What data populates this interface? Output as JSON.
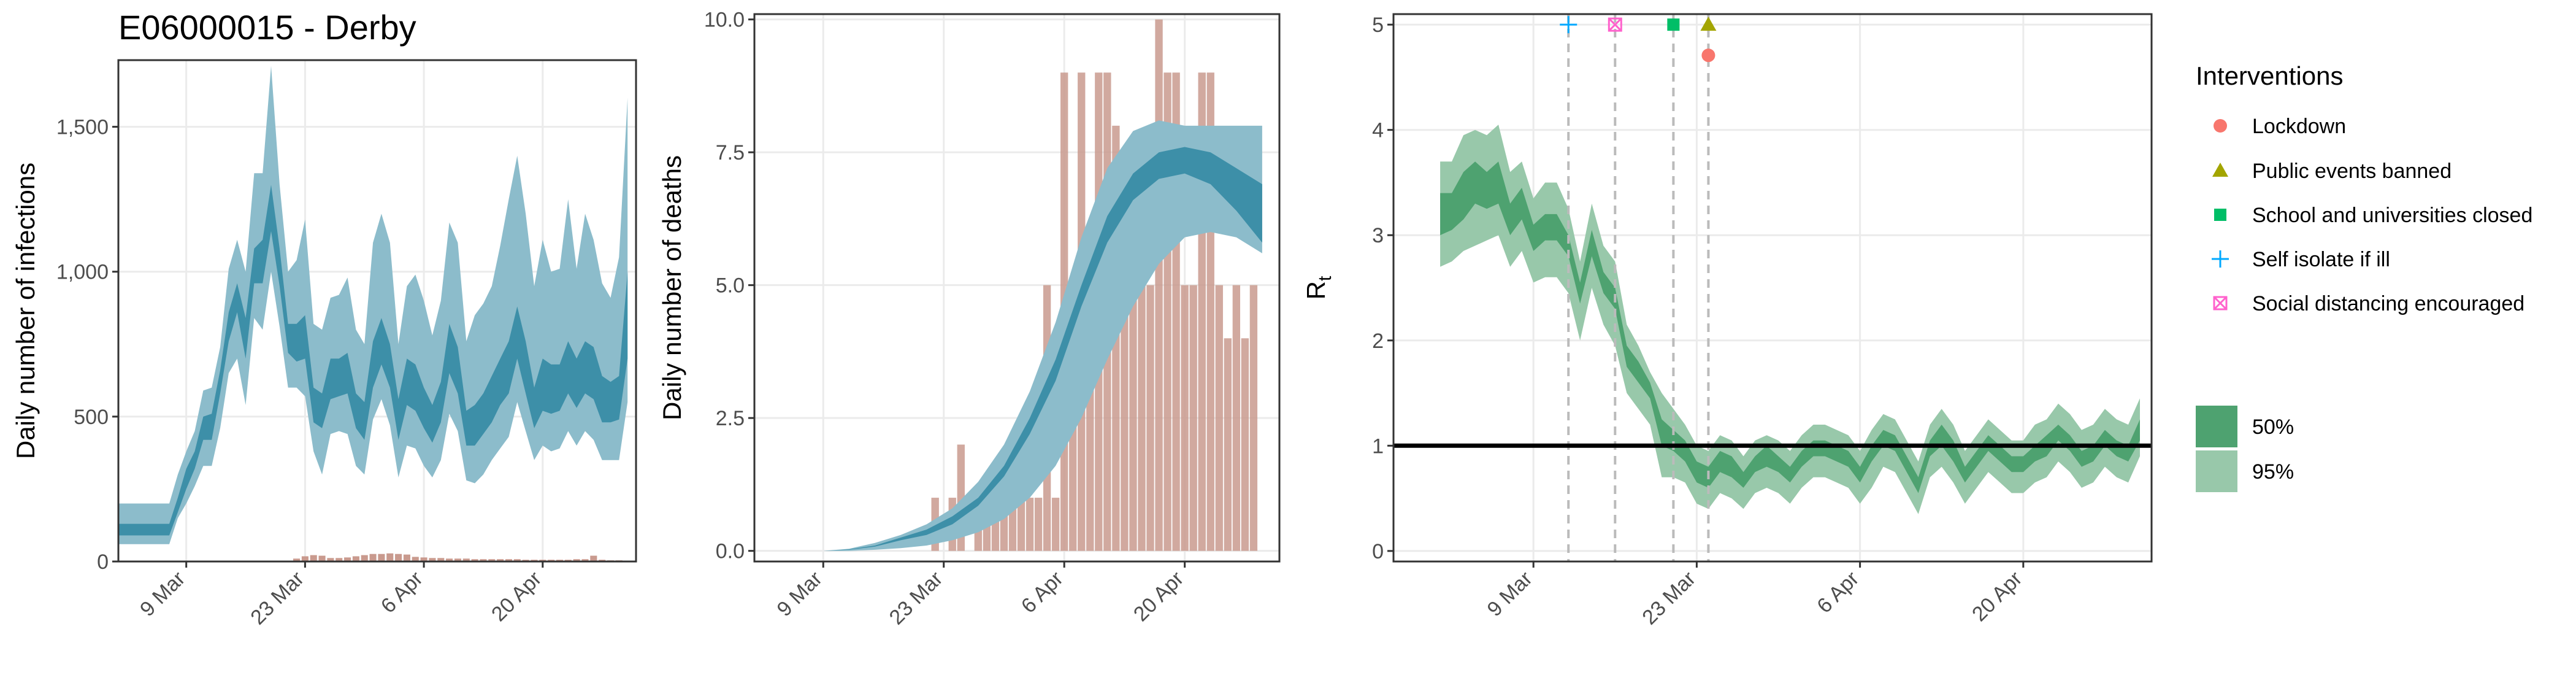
{
  "chart_data": [
    {
      "type": "area",
      "title": "E06000015 - Derby",
      "xlabel": "",
      "ylabel": "Daily number of infections",
      "x_range": [
        "2020-03-01",
        "2020-05-01"
      ],
      "ylim": [
        0,
        1730
      ],
      "grid": true,
      "y_ticks": [
        0,
        500,
        1000,
        1500
      ],
      "y_tick_labels": [
        "0",
        "500",
        "1,000",
        "1,500"
      ],
      "x_ticks": [
        "2020-03-09",
        "2020-03-23",
        "2020-04-06",
        "2020-04-20"
      ],
      "x_tick_labels": [
        "9 Mar",
        "23 Mar",
        "6 Apr",
        "20 Apr"
      ],
      "x": [
        "2020-03-01",
        "2020-03-02",
        "2020-03-03",
        "2020-03-04",
        "2020-03-05",
        "2020-03-06",
        "2020-03-07",
        "2020-03-08",
        "2020-03-09",
        "2020-03-10",
        "2020-03-11",
        "2020-03-12",
        "2020-03-13",
        "2020-03-14",
        "2020-03-15",
        "2020-03-16",
        "2020-03-17",
        "2020-03-18",
        "2020-03-19",
        "2020-03-20",
        "2020-03-21",
        "2020-03-22",
        "2020-03-23",
        "2020-03-24",
        "2020-03-25",
        "2020-03-26",
        "2020-03-27",
        "2020-03-28",
        "2020-03-29",
        "2020-03-30",
        "2020-03-31",
        "2020-04-01",
        "2020-04-02",
        "2020-04-03",
        "2020-04-04",
        "2020-04-05",
        "2020-04-06",
        "2020-04-07",
        "2020-04-08",
        "2020-04-09",
        "2020-04-10",
        "2020-04-11",
        "2020-04-12",
        "2020-04-13",
        "2020-04-14",
        "2020-04-15",
        "2020-04-16",
        "2020-04-17",
        "2020-04-18",
        "2020-04-19",
        "2020-04-20",
        "2020-04-21",
        "2020-04-22",
        "2020-04-23",
        "2020-04-24",
        "2020-04-25",
        "2020-04-26",
        "2020-04-27",
        "2020-04-28",
        "2020-04-29",
        "2020-04-30"
      ],
      "series": [
        {
          "name": "95%",
          "lower": [
            60,
            60,
            60,
            60,
            60,
            60,
            60,
            150,
            200,
            260,
            330,
            330,
            460,
            650,
            700,
            540,
            840,
            800,
            1000,
            810,
            600,
            600,
            570,
            380,
            300,
            440,
            450,
            440,
            330,
            300,
            490,
            560,
            470,
            290,
            400,
            390,
            330,
            290,
            350,
            510,
            450,
            280,
            270,
            300,
            350,
            390,
            430,
            550,
            450,
            350,
            400,
            380,
            390,
            450,
            400,
            450,
            420,
            350,
            350,
            350,
            550
          ],
          "upper": [
            200,
            200,
            200,
            200,
            200,
            200,
            200,
            300,
            380,
            450,
            590,
            600,
            740,
            1010,
            1110,
            1000,
            1340,
            1340,
            1710,
            1300,
            1000,
            1040,
            1180,
            820,
            800,
            910,
            920,
            980,
            800,
            750,
            1100,
            1200,
            1100,
            750,
            950,
            990,
            900,
            780,
            900,
            1170,
            1100,
            760,
            850,
            890,
            950,
            1090,
            1250,
            1400,
            1200,
            950,
            1110,
            1000,
            1010,
            1250,
            1010,
            1200,
            1110,
            960,
            910,
            1050,
            1600
          ]
        },
        {
          "name": "50%",
          "lower": [
            90,
            90,
            90,
            90,
            90,
            90,
            90,
            170,
            250,
            320,
            420,
            420,
            580,
            760,
            860,
            700,
            960,
            960,
            1140,
            950,
            720,
            690,
            700,
            480,
            460,
            560,
            570,
            580,
            460,
            420,
            600,
            680,
            600,
            420,
            540,
            520,
            460,
            410,
            480,
            650,
            580,
            400,
            400,
            440,
            480,
            540,
            580,
            700,
            580,
            460,
            520,
            510,
            520,
            580,
            530,
            580,
            560,
            480,
            480,
            490,
            700
          ],
          "upper": [
            130,
            130,
            130,
            130,
            130,
            130,
            130,
            220,
            320,
            380,
            500,
            510,
            660,
            860,
            960,
            840,
            1080,
            1110,
            1300,
            1080,
            820,
            820,
            850,
            600,
            580,
            700,
            700,
            720,
            580,
            550,
            760,
            840,
            750,
            560,
            700,
            680,
            600,
            540,
            620,
            820,
            740,
            520,
            540,
            580,
            640,
            700,
            760,
            880,
            760,
            600,
            700,
            680,
            680,
            760,
            700,
            760,
            740,
            640,
            620,
            640,
            1000
          ]
        }
      ],
      "observed_bars": {
        "name": "observed infections",
        "values": [
          0,
          0,
          0,
          0,
          0,
          0,
          0,
          0,
          0,
          0,
          0,
          0,
          0,
          0,
          0,
          0,
          0,
          0,
          0,
          0,
          0,
          10,
          18,
          22,
          20,
          12,
          12,
          14,
          18,
          22,
          26,
          26,
          28,
          26,
          24,
          16,
          14,
          12,
          12,
          10,
          10,
          10,
          8,
          8,
          8,
          8,
          8,
          8,
          6,
          6,
          6,
          6,
          6,
          6,
          8,
          8,
          20,
          6,
          4,
          4,
          0
        ]
      }
    },
    {
      "type": "area",
      "title": "",
      "xlabel": "",
      "ylabel": "Daily number of deaths",
      "x_range": [
        "2020-03-01",
        "2020-05-01"
      ],
      "ylim": [
        -0.2,
        10.1
      ],
      "grid": true,
      "y_ticks": [
        0,
        2.5,
        5,
        7.5,
        10
      ],
      "y_tick_labels": [
        "0.0",
        "2.5",
        "5.0",
        "7.5",
        "10.0"
      ],
      "x_ticks": [
        "2020-03-09",
        "2020-03-23",
        "2020-04-06",
        "2020-04-20"
      ],
      "x_tick_labels": [
        "9 Mar",
        "23 Mar",
        "6 Apr",
        "20 Apr"
      ],
      "x": [
        "2020-03-09",
        "2020-03-12",
        "2020-03-15",
        "2020-03-18",
        "2020-03-21",
        "2020-03-24",
        "2020-03-27",
        "2020-03-30",
        "2020-04-02",
        "2020-04-05",
        "2020-04-08",
        "2020-04-11",
        "2020-04-14",
        "2020-04-17",
        "2020-04-20",
        "2020-04-23",
        "2020-04-26",
        "2020-04-29"
      ],
      "series": [
        {
          "name": "95%",
          "lower": [
            0,
            0,
            0.02,
            0.05,
            0.1,
            0.2,
            0.35,
            0.6,
            1.0,
            1.6,
            2.5,
            3.6,
            4.6,
            5.4,
            5.9,
            6.0,
            5.9,
            5.6
          ],
          "upper": [
            0,
            0.04,
            0.15,
            0.3,
            0.5,
            0.8,
            1.3,
            2.0,
            3.0,
            4.3,
            5.9,
            7.2,
            7.9,
            8.1,
            8.0,
            8.0,
            8.0,
            8.0
          ]
        },
        {
          "name": "50%",
          "lower": [
            0,
            0.02,
            0.08,
            0.2,
            0.3,
            0.5,
            0.85,
            1.4,
            2.2,
            3.2,
            4.6,
            5.8,
            6.6,
            7.0,
            7.1,
            6.9,
            6.4,
            5.8
          ],
          "upper": [
            0,
            0.03,
            0.1,
            0.25,
            0.4,
            0.65,
            1.0,
            1.6,
            2.5,
            3.6,
            5.0,
            6.3,
            7.1,
            7.5,
            7.6,
            7.5,
            7.2,
            6.9
          ]
        }
      ],
      "observed_bars": {
        "name": "observed deaths",
        "x": [
          "2020-03-22",
          "2020-03-23",
          "2020-03-24",
          "2020-03-25",
          "2020-03-26",
          "2020-03-27",
          "2020-03-28",
          "2020-03-29",
          "2020-03-30",
          "2020-03-31",
          "2020-04-01",
          "2020-04-02",
          "2020-04-03",
          "2020-04-04",
          "2020-04-05",
          "2020-04-06",
          "2020-04-07",
          "2020-04-08",
          "2020-04-09",
          "2020-04-10",
          "2020-04-11",
          "2020-04-12",
          "2020-04-13",
          "2020-04-14",
          "2020-04-15",
          "2020-04-16",
          "2020-04-17",
          "2020-04-18",
          "2020-04-19",
          "2020-04-20",
          "2020-04-21",
          "2020-04-22",
          "2020-04-23",
          "2020-04-24",
          "2020-04-25",
          "2020-04-26",
          "2020-04-27",
          "2020-04-28"
        ],
        "values": [
          1,
          0,
          1,
          2,
          0,
          1,
          1,
          1,
          1,
          1,
          1,
          1,
          1,
          5,
          1,
          9,
          4,
          9,
          5,
          9,
          9,
          8,
          5,
          5,
          5,
          5,
          10,
          9,
          9,
          5,
          5,
          9,
          9,
          5,
          4,
          5,
          4,
          5
        ]
      }
    },
    {
      "type": "area",
      "title": "",
      "xlabel": "",
      "ylabel": "R",
      "ylabel_subscript": "t",
      "x_range": [
        "2020-02-26",
        "2020-05-01"
      ],
      "ylim": [
        -0.1,
        5.1
      ],
      "grid": true,
      "y_ticks": [
        0,
        1,
        2,
        3,
        4,
        5
      ],
      "y_tick_labels": [
        "0",
        "1",
        "2",
        "3",
        "4",
        "5"
      ],
      "x_ticks": [
        "2020-03-09",
        "2020-03-23",
        "2020-04-06",
        "2020-04-20"
      ],
      "x_tick_labels": [
        "9 Mar",
        "23 Mar",
        "6 Apr",
        "20 Apr"
      ],
      "reference_line": 1,
      "x": [
        "2020-03-01",
        "2020-03-02",
        "2020-03-03",
        "2020-03-04",
        "2020-03-05",
        "2020-03-06",
        "2020-03-07",
        "2020-03-08",
        "2020-03-09",
        "2020-03-10",
        "2020-03-11",
        "2020-03-12",
        "2020-03-13",
        "2020-03-14",
        "2020-03-15",
        "2020-03-16",
        "2020-03-17",
        "2020-03-18",
        "2020-03-19",
        "2020-03-20",
        "2020-03-21",
        "2020-03-22",
        "2020-03-23",
        "2020-03-24",
        "2020-03-25",
        "2020-03-26",
        "2020-03-27",
        "2020-03-28",
        "2020-03-29",
        "2020-03-30",
        "2020-03-31",
        "2020-04-01",
        "2020-04-02",
        "2020-04-03",
        "2020-04-04",
        "2020-04-05",
        "2020-04-06",
        "2020-04-07",
        "2020-04-08",
        "2020-04-09",
        "2020-04-10",
        "2020-04-11",
        "2020-04-12",
        "2020-04-13",
        "2020-04-14",
        "2020-04-15",
        "2020-04-16",
        "2020-04-17",
        "2020-04-18",
        "2020-04-19",
        "2020-04-20",
        "2020-04-21",
        "2020-04-22",
        "2020-04-23",
        "2020-04-24",
        "2020-04-25",
        "2020-04-26",
        "2020-04-27",
        "2020-04-28",
        "2020-04-29",
        "2020-04-30"
      ],
      "series": [
        {
          "name": "95%",
          "lower": [
            2.7,
            2.75,
            2.85,
            2.9,
            2.95,
            3.0,
            2.7,
            2.85,
            2.55,
            2.6,
            2.6,
            2.45,
            2.0,
            2.5,
            2.15,
            1.95,
            1.5,
            1.35,
            1.2,
            0.7,
            0.7,
            0.65,
            0.45,
            0.4,
            0.55,
            0.5,
            0.4,
            0.55,
            0.6,
            0.55,
            0.45,
            0.6,
            0.7,
            0.7,
            0.65,
            0.6,
            0.45,
            0.6,
            0.8,
            0.75,
            0.55,
            0.35,
            0.7,
            0.8,
            0.65,
            0.45,
            0.6,
            0.75,
            0.65,
            0.55,
            0.55,
            0.65,
            0.7,
            0.85,
            0.75,
            0.6,
            0.65,
            0.8,
            0.7,
            0.65,
            0.9
          ],
          "upper": [
            3.7,
            3.7,
            3.95,
            4.0,
            3.95,
            4.05,
            3.6,
            3.7,
            3.35,
            3.5,
            3.5,
            3.25,
            2.75,
            3.3,
            2.9,
            2.75,
            2.15,
            1.95,
            1.7,
            1.5,
            1.35,
            1.2,
            1.0,
            0.95,
            1.1,
            1.05,
            0.9,
            1.05,
            1.1,
            1.05,
            0.95,
            1.1,
            1.2,
            1.2,
            1.15,
            1.1,
            0.95,
            1.15,
            1.3,
            1.25,
            1.05,
            0.85,
            1.2,
            1.35,
            1.2,
            0.95,
            1.1,
            1.25,
            1.15,
            1.05,
            1.05,
            1.2,
            1.25,
            1.4,
            1.3,
            1.15,
            1.2,
            1.35,
            1.25,
            1.2,
            1.45
          ]
        },
        {
          "name": "50%",
          "lower": [
            3.0,
            3.05,
            3.15,
            3.3,
            3.25,
            3.3,
            3.0,
            3.15,
            2.85,
            2.95,
            2.95,
            2.8,
            2.35,
            2.8,
            2.45,
            2.3,
            1.75,
            1.6,
            1.45,
            1.0,
            0.95,
            0.85,
            0.65,
            0.6,
            0.75,
            0.7,
            0.6,
            0.75,
            0.8,
            0.75,
            0.65,
            0.8,
            0.9,
            0.9,
            0.85,
            0.8,
            0.65,
            0.85,
            1.0,
            0.95,
            0.75,
            0.55,
            0.9,
            1.0,
            0.85,
            0.65,
            0.8,
            0.95,
            0.85,
            0.75,
            0.75,
            0.85,
            0.9,
            1.05,
            0.95,
            0.8,
            0.85,
            1.0,
            0.9,
            0.85,
            1.05
          ],
          "upper": [
            3.4,
            3.4,
            3.6,
            3.7,
            3.6,
            3.7,
            3.3,
            3.45,
            3.1,
            3.2,
            3.2,
            3.0,
            2.55,
            3.05,
            2.65,
            2.5,
            1.95,
            1.8,
            1.6,
            1.25,
            1.15,
            1.05,
            0.85,
            0.8,
            0.95,
            0.9,
            0.75,
            0.9,
            1.0,
            0.9,
            0.8,
            0.95,
            1.05,
            1.05,
            1.0,
            0.95,
            0.8,
            1.0,
            1.15,
            1.1,
            0.9,
            0.7,
            1.05,
            1.2,
            1.05,
            0.8,
            0.95,
            1.1,
            1.0,
            0.9,
            0.9,
            1.0,
            1.1,
            1.2,
            1.1,
            0.95,
            1.0,
            1.15,
            1.05,
            1.0,
            1.25
          ]
        }
      ],
      "interventions": [
        {
          "name": "Self isolate if ill",
          "date": "2020-03-12",
          "marker": "plus",
          "color": "#00A9FF"
        },
        {
          "name": "Social distancing encouraged",
          "date": "2020-03-16",
          "marker": "boxcross",
          "color": "#FF61CC"
        },
        {
          "name": "School and universities closed",
          "date": "2020-03-21",
          "marker": "square",
          "color": "#00BE67"
        },
        {
          "name": "Public events banned",
          "date": "2020-03-24",
          "marker": "triangle",
          "color": "#A3A500"
        },
        {
          "name": "Lockdown",
          "date": "2020-03-24",
          "marker": "circle",
          "color": "#F8766D"
        }
      ]
    }
  ],
  "legend": {
    "title": "Interventions",
    "items": [
      {
        "label": "Lockdown",
        "marker": "circle",
        "color": "#F8766D"
      },
      {
        "label": "Public events banned",
        "marker": "triangle",
        "color": "#A3A500"
      },
      {
        "label": "School and universities closed",
        "marker": "square",
        "color": "#00BE67"
      },
      {
        "label": "Self isolate if ill",
        "marker": "plus",
        "color": "#00A9FF"
      },
      {
        "label": "Social distancing encouraged",
        "marker": "boxcross",
        "color": "#FF61CC"
      }
    ],
    "bands": [
      {
        "label": "50%",
        "color": "#4ea270"
      },
      {
        "label": "95%",
        "color": "#98c8aa"
      }
    ]
  },
  "colors": {
    "infections_95": "#8cbccb",
    "infections_50": "#3d8fa8",
    "observed_bar": "#c99a8e",
    "rt_95": "#98c8aa",
    "rt_50": "#4ea270",
    "reference_line": "#000000",
    "intervention_line": "#bbbbbb"
  }
}
